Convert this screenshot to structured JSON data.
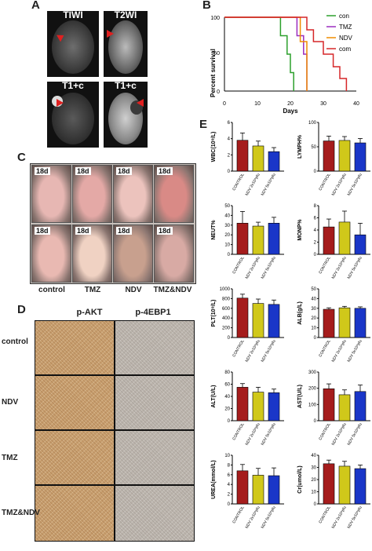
{
  "panels": {
    "a": "A",
    "b": "B",
    "c": "C",
    "d": "D",
    "e": "E"
  },
  "mri": {
    "t1wi": "TIWI",
    "t2wi": "T2WI",
    "t1c_left": "T1+c",
    "t1c_right": "T1+c"
  },
  "survival": {
    "ylabel": "Percent survival",
    "xlabel": "Days",
    "yticks": [
      "0",
      "50",
      "100"
    ],
    "xticks": [
      "0",
      "10",
      "20",
      "30",
      "40"
    ],
    "legend": [
      {
        "name": "con",
        "color": "#2ca02c"
      },
      {
        "name": "TMZ",
        "color": "#9b2dbf"
      },
      {
        "name": "NDV",
        "color": "#f08c00"
      },
      {
        "name": "com",
        "color": "#d62728"
      }
    ]
  },
  "photos": {
    "day": "18d",
    "groups": [
      "control",
      "TMZ",
      "NDV",
      "TMZ&NDV"
    ]
  },
  "ihc": {
    "columns": [
      "p-AKT",
      "p-4EBP1"
    ],
    "rows": [
      "control",
      "NDV",
      "TMZ",
      "TMZ&NDV"
    ]
  },
  "chart_data": [
    {
      "type": "line",
      "title": "",
      "xlabel": "Days",
      "ylabel": "Percent survival",
      "xlim": [
        0,
        40
      ],
      "ylim": [
        0,
        100
      ],
      "series": [
        {
          "name": "con",
          "x": [
            0,
            17,
            17,
            19,
            19,
            20,
            20,
            21,
            21
          ],
          "y": [
            100,
            100,
            75,
            75,
            50,
            50,
            25,
            25,
            0
          ]
        },
        {
          "name": "TMZ",
          "x": [
            0,
            22,
            22,
            24,
            24,
            25,
            25
          ],
          "y": [
            100,
            100,
            75,
            75,
            50,
            50,
            0
          ]
        },
        {
          "name": "NDV",
          "x": [
            0,
            23,
            23,
            25,
            25
          ],
          "y": [
            100,
            100,
            67,
            67,
            0
          ]
        },
        {
          "name": "com",
          "x": [
            0,
            25,
            25,
            27,
            27,
            30,
            30,
            33,
            33,
            35,
            35,
            37,
            37
          ],
          "y": [
            100,
            100,
            83,
            83,
            67,
            67,
            50,
            50,
            33,
            33,
            17,
            17,
            0
          ]
        }
      ]
    },
    {
      "type": "bar",
      "ylabel": "WBC(10⁹/L)",
      "categories": [
        "CONTROL",
        "NDV 2x10⁸pfu",
        "NDV 5x10⁸pfu"
      ],
      "values": [
        3.8,
        3.1,
        2.4
      ],
      "errors": [
        0.9,
        0.6,
        0.5
      ],
      "ylim": [
        0,
        6
      ],
      "yticks": [
        "0",
        "2",
        "4",
        "6"
      ]
    },
    {
      "type": "bar",
      "ylabel": "LYMPH%",
      "categories": [
        "CONTROL",
        "NDV 2x10⁸pfu",
        "NDV 5x10⁸pfu"
      ],
      "values": [
        62,
        63,
        58
      ],
      "errors": [
        10,
        8,
        9
      ],
      "ylim": [
        0,
        100
      ],
      "yticks": [
        "0",
        "50",
        "100"
      ]
    },
    {
      "type": "bar",
      "ylabel": "NEUT%",
      "categories": [
        "CONTROL",
        "NDV 2x10⁸pfu",
        "NDV 5x10⁸pfu"
      ],
      "values": [
        32,
        29,
        32
      ],
      "errors": [
        12,
        4,
        6
      ],
      "ylim": [
        0,
        50
      ],
      "yticks": [
        "0",
        "10",
        "20",
        "30",
        "40",
        "50"
      ]
    },
    {
      "type": "bar",
      "ylabel": "MONP%",
      "categories": [
        "CONTROL",
        "NDV 2x10⁸pfu",
        "NDV 5x10⁸pfu"
      ],
      "values": [
        4.5,
        5.3,
        3.2
      ],
      "errors": [
        1.3,
        1.8,
        1.9
      ],
      "ylim": [
        0,
        8
      ],
      "yticks": [
        "0",
        "2",
        "4",
        "6",
        "8"
      ]
    },
    {
      "type": "bar",
      "ylabel": "PLT(10⁹/L)",
      "categories": [
        "CONTROL",
        "NDV 2x10⁸pfu",
        "NDV 5x10⁸pfu"
      ],
      "values": [
        810,
        700,
        680
      ],
      "errors": [
        80,
        90,
        90
      ],
      "ylim": [
        0,
        1000
      ],
      "yticks": [
        "0",
        "200",
        "400",
        "600",
        "800",
        "1000"
      ]
    },
    {
      "type": "bar",
      "ylabel": "ALB(g/L)",
      "categories": [
        "CONTROL",
        "NDV 2x10⁸pfu",
        "NDV 5x10⁸pfu"
      ],
      "values": [
        29,
        30.5,
        30
      ],
      "errors": [
        1.5,
        1.5,
        1.5
      ],
      "ylim": [
        0,
        50
      ],
      "yticks": [
        "0",
        "10",
        "20",
        "30",
        "40",
        "50"
      ]
    },
    {
      "type": "bar",
      "ylabel": "ALT(U/L)",
      "categories": [
        "CONTROL",
        "NDV 2x10⁸pfu",
        "NDV 5x10⁸pfu"
      ],
      "values": [
        55,
        47,
        46
      ],
      "errors": [
        6,
        8,
        6
      ],
      "ylim": [
        0,
        80
      ],
      "yticks": [
        "0",
        "20",
        "40",
        "60",
        "80"
      ]
    },
    {
      "type": "bar",
      "ylabel": "AST(U/L)",
      "categories": [
        "CONTROL",
        "NDV 2x10⁸pfu",
        "NDV 5x10⁸pfu"
      ],
      "values": [
        197,
        160,
        180
      ],
      "errors": [
        30,
        30,
        40
      ],
      "ylim": [
        0,
        300
      ],
      "yticks": [
        "0",
        "100",
        "200",
        "300"
      ]
    },
    {
      "type": "bar",
      "ylabel": "UREA(mmol/L)",
      "categories": [
        "CONTROL",
        "NDV 2x10⁸pfu",
        "NDV 5x10⁸pfu"
      ],
      "values": [
        6.8,
        5.9,
        5.8
      ],
      "errors": [
        1.3,
        1.4,
        1.6
      ],
      "ylim": [
        0,
        10
      ],
      "yticks": [
        "0",
        "2",
        "4",
        "6",
        "8",
        "10"
      ]
    },
    {
      "type": "bar",
      "ylabel": "Cr(umol/L)",
      "categories": [
        "CONTROL",
        "NDV 2x10⁸pfu",
        "NDV 5x10⁸pfu"
      ],
      "values": [
        33,
        31,
        29
      ],
      "errors": [
        3,
        4,
        3
      ],
      "ylim": [
        0,
        40
      ],
      "yticks": [
        "0",
        "10",
        "20",
        "30",
        "40"
      ]
    }
  ],
  "colors": {
    "control": "#a51c1c",
    "ndv_low": "#d0c81a",
    "ndv_high": "#1a36c8",
    "akt": "#c9a070",
    "ebp": "#bdb6ae"
  }
}
